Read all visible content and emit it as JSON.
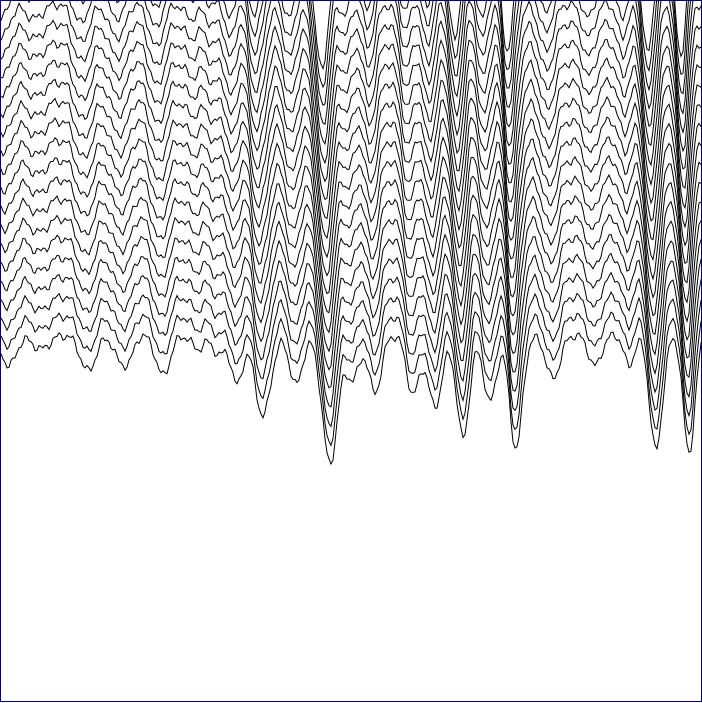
{
  "canvas": {
    "background_color": "#ffffff",
    "border_color": "#000080",
    "line_color": "#000000"
  },
  "artwork": {
    "description_kind": "stacked-wave-lines",
    "line_count": 22
  }
}
